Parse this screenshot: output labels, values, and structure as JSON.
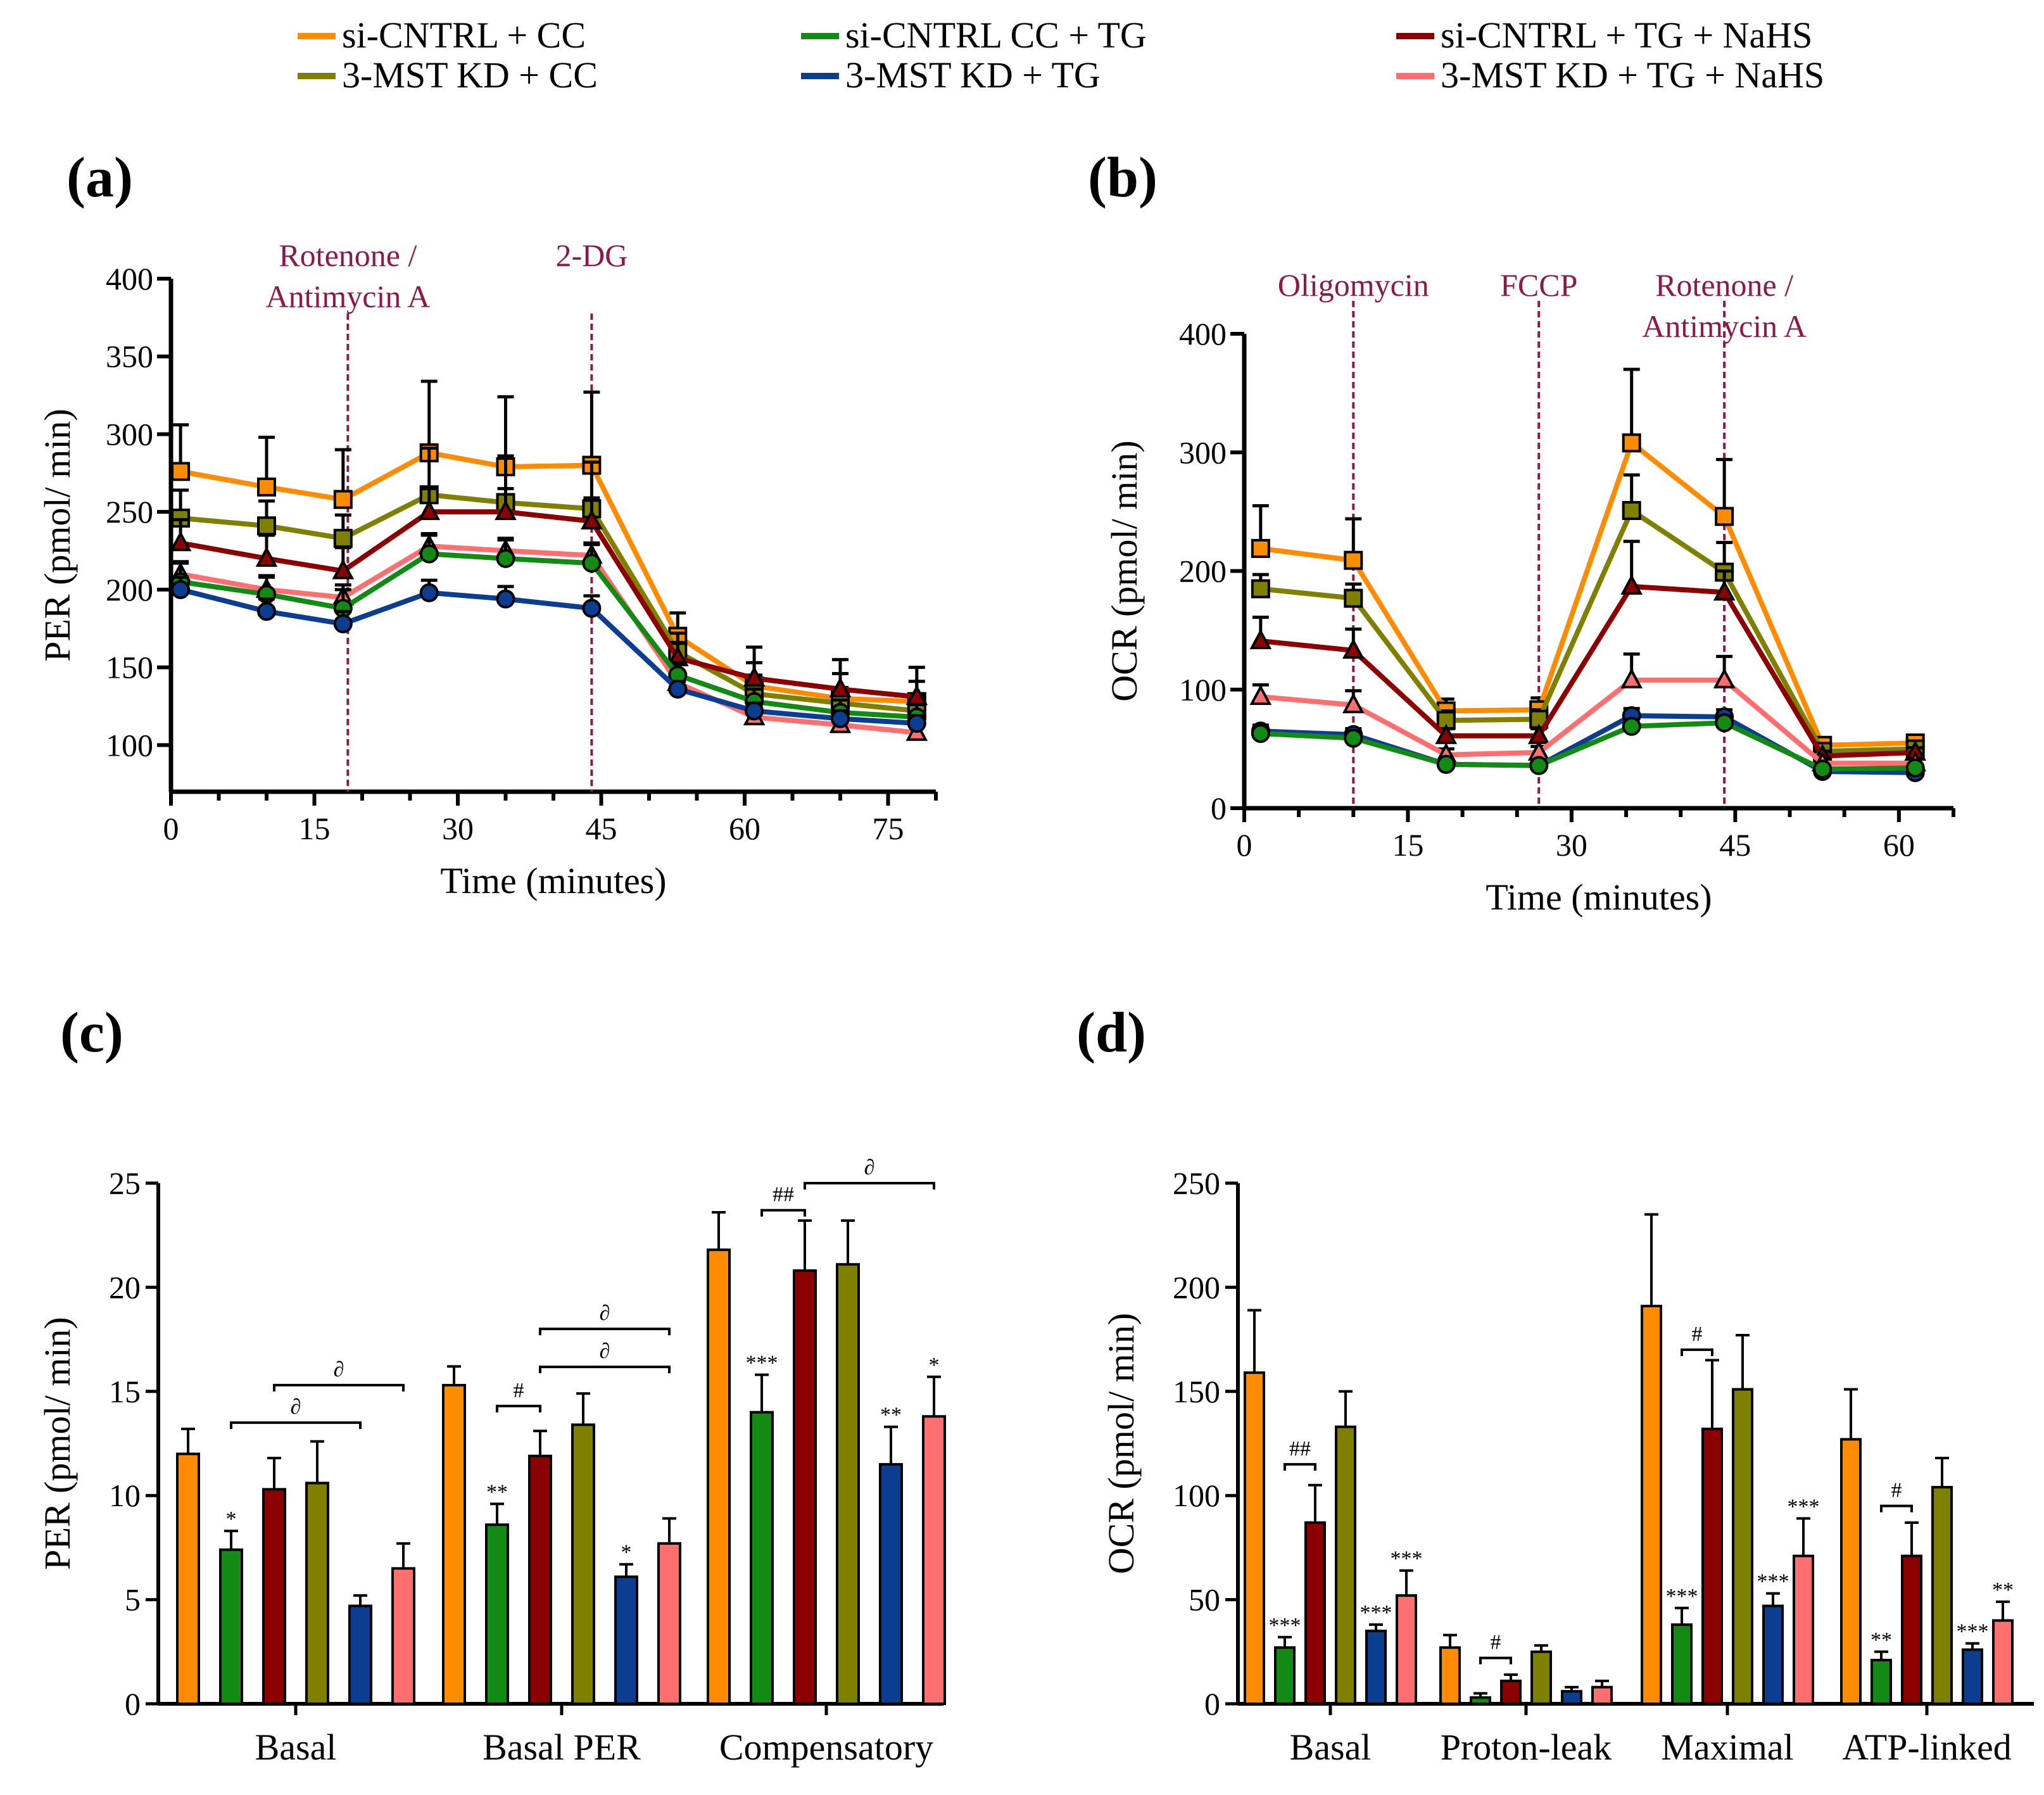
{
  "legend": [
    {
      "label": "si-CNTRL + CC",
      "color": "#ff8c00"
    },
    {
      "label": "3-MST KD + CC",
      "color": "#7f7f00"
    },
    {
      "label": "si-CNTRL CC + TG",
      "color": "#138a13"
    },
    {
      "label": "3-MST KD + TG",
      "color": "#0b3d91"
    },
    {
      "label": "si-CNTRL  + TG + NaHS",
      "color": "#8b0000"
    },
    {
      "label": "3-MST KD + TG + NaHS",
      "color": "#ff6f6f"
    }
  ],
  "chart_data": [
    {
      "id": "a",
      "panel_label": "(a)",
      "type": "line",
      "xlabel": "Time (minutes)",
      "ylabel": "PER (pmol/ min)",
      "xlim": [
        0,
        80
      ],
      "ylim": [
        70,
        400
      ],
      "xticks": [
        0,
        15,
        30,
        45,
        60,
        75
      ],
      "yticks": [
        100,
        150,
        200,
        250,
        300,
        350,
        400
      ],
      "x": [
        1,
        10,
        18,
        27,
        35,
        44,
        53,
        61,
        70,
        78
      ],
      "annotations": [
        {
          "x": 18.5,
          "lines": [
            "Rotenone /",
            "Antimycin A"
          ]
        },
        {
          "x": 44,
          "lines": [
            "2-DG"
          ]
        }
      ],
      "series": [
        {
          "name": "si-CNTRL + CC",
          "color": "#ff8c00",
          "marker": "square",
          "values": [
            276,
            266,
            258,
            288,
            279,
            280,
            170,
            138,
            130,
            128
          ],
          "errors": [
            30,
            32,
            32,
            46,
            45,
            47,
            15,
            25,
            25,
            22
          ]
        },
        {
          "name": "3-MST KD + CC",
          "color": "#7f7f00",
          "marker": "square",
          "values": [
            246,
            241,
            233,
            261,
            256,
            252,
            160,
            133,
            127,
            122
          ],
          "errors": [
            18,
            16,
            15,
            30,
            30,
            30,
            12,
            12,
            10,
            10
          ]
        },
        {
          "name": "si-CNTRL  + TG + NaHS",
          "color": "#8b0000",
          "marker": "triangle",
          "values": [
            230,
            220,
            212,
            250,
            250,
            244,
            156,
            143,
            136,
            131
          ],
          "errors": [
            15,
            15,
            15,
            15,
            15,
            15,
            10,
            10,
            10,
            10
          ]
        },
        {
          "name": "3-MST KD + TG + NaHS",
          "color": "#ff6f6f",
          "marker": "triangle",
          "values": [
            210,
            200,
            195,
            228,
            225,
            222,
            140,
            118,
            113,
            108
          ],
          "errors": [
            8,
            8,
            8,
            8,
            8,
            8,
            5,
            5,
            5,
            5
          ]
        },
        {
          "name": "si-CNTRL CC + TG",
          "color": "#138a13",
          "marker": "circle",
          "values": [
            205,
            197,
            188,
            223,
            220,
            217,
            145,
            128,
            121,
            118
          ],
          "errors": [
            12,
            12,
            12,
            12,
            12,
            12,
            8,
            8,
            8,
            8
          ]
        },
        {
          "name": "3-MST KD + TG",
          "color": "#0b3d91",
          "marker": "circle",
          "values": [
            200,
            186,
            178,
            198,
            194,
            188,
            136,
            122,
            117,
            114
          ],
          "errors": [
            8,
            8,
            8,
            8,
            8,
            8,
            5,
            5,
            5,
            5
          ]
        }
      ]
    },
    {
      "id": "b",
      "panel_label": "(b)",
      "type": "line",
      "xlabel": "Time (minutes)",
      "ylabel": "OCR (pmol/ min)",
      "xlim": [
        0,
        65
      ],
      "ylim": [
        0,
        400
      ],
      "xticks": [
        0,
        15,
        30,
        45,
        60
      ],
      "yticks": [
        0,
        100,
        200,
        300,
        400
      ],
      "x": [
        1.5,
        10,
        18.5,
        27,
        35.5,
        44,
        53,
        61.5
      ],
      "annotations": [
        {
          "x": 10,
          "lines": [
            "Oligomycin"
          ]
        },
        {
          "x": 27,
          "lines": [
            "FCCP"
          ]
        },
        {
          "x": 44,
          "lines": [
            "Rotenone /",
            "Antimycin A"
          ]
        }
      ],
      "series": [
        {
          "name": "si-CNTRL + CC",
          "color": "#ff8c00",
          "marker": "square",
          "values": [
            219,
            209,
            82,
            83,
            308,
            246,
            53,
            55
          ],
          "errors": [
            36,
            35,
            10,
            10,
            62,
            48,
            5,
            5
          ]
        },
        {
          "name": "3-MST KD + CC",
          "color": "#7f7f00",
          "marker": "square",
          "values": [
            185,
            177,
            74,
            75,
            251,
            199,
            48,
            50
          ],
          "errors": [
            12,
            12,
            8,
            8,
            30,
            25,
            5,
            5
          ]
        },
        {
          "name": "si-CNTRL  + TG + NaHS",
          "color": "#8b0000",
          "marker": "triangle",
          "values": [
            141,
            133,
            61,
            61,
            187,
            182,
            44,
            47
          ],
          "errors": [
            20,
            18,
            6,
            6,
            38,
            18,
            4,
            4
          ]
        },
        {
          "name": "3-MST KD + TG + NaHS",
          "color": "#ff6f6f",
          "marker": "triangle",
          "values": [
            94,
            87,
            45,
            47,
            108,
            108,
            38,
            38
          ],
          "errors": [
            10,
            12,
            5,
            5,
            22,
            20,
            4,
            4
          ]
        },
        {
          "name": "3-MST KD + TG",
          "color": "#0b3d91",
          "marker": "circle",
          "values": [
            65,
            62,
            37,
            36,
            78,
            77,
            31,
            30
          ],
          "errors": [
            5,
            5,
            3,
            3,
            6,
            6,
            3,
            3
          ]
        },
        {
          "name": "si-CNTRL CC + TG",
          "color": "#138a13",
          "marker": "circle",
          "values": [
            63,
            59,
            37,
            36,
            69,
            72,
            33,
            34
          ],
          "errors": [
            5,
            5,
            3,
            3,
            6,
            6,
            3,
            3
          ]
        }
      ]
    },
    {
      "id": "c",
      "panel_label": "(c)",
      "type": "bar",
      "ylabel": "PER (pmol/ min)",
      "ylim": [
        0,
        25
      ],
      "yticks": [
        0,
        5,
        10,
        15,
        20,
        25
      ],
      "categories": [
        "Basal",
        "Basal PER",
        "Compensatory"
      ],
      "series": [
        {
          "name": "si-CNTRL + CC",
          "color": "#ff8c00",
          "values": [
            12.0,
            15.3,
            21.8
          ],
          "errors": [
            1.2,
            0.9,
            1.8
          ],
          "labels": [
            "",
            "",
            ""
          ]
        },
        {
          "name": "si-CNTRL CC + TG",
          "color": "#138a13",
          "values": [
            7.4,
            8.6,
            14.0
          ],
          "errors": [
            0.9,
            1.0,
            1.8
          ],
          "labels": [
            "*",
            "**",
            "***"
          ]
        },
        {
          "name": "si-CNTRL  + TG + NaHS",
          "color": "#8b0000",
          "values": [
            10.3,
            11.9,
            20.8
          ],
          "errors": [
            1.5,
            1.2,
            2.4
          ],
          "labels": [
            "",
            "",
            ""
          ]
        },
        {
          "name": "3-MST KD + CC",
          "color": "#7f7f00",
          "values": [
            10.6,
            13.4,
            21.1
          ],
          "errors": [
            2.0,
            1.5,
            2.1
          ],
          "labels": [
            "",
            "",
            ""
          ]
        },
        {
          "name": "3-MST KD + TG",
          "color": "#0b3d91",
          "values": [
            4.7,
            6.1,
            11.5
          ],
          "errors": [
            0.5,
            0.6,
            1.8
          ],
          "labels": [
            "",
            "*",
            "**"
          ]
        },
        {
          "name": "3-MST KD + TG + NaHS",
          "color": "#ff6f6f",
          "values": [
            6.5,
            7.7,
            13.8
          ],
          "errors": [
            1.2,
            1.2,
            1.9
          ],
          "labels": [
            "",
            "",
            "*"
          ]
        }
      ],
      "brackets": [
        {
          "category": 0,
          "from": 1,
          "to": 4,
          "y": 13.5,
          "text": "∂"
        },
        {
          "category": 0,
          "from": 2,
          "to": 5,
          "y": 15.3,
          "text": "∂"
        },
        {
          "category": 1,
          "from": 1,
          "to": 2,
          "y": 14.3,
          "text": "#"
        },
        {
          "category": 1,
          "from": 2,
          "to": 5,
          "y": 18.0,
          "text": "∂"
        },
        {
          "category": 1,
          "from": 2,
          "to": 5,
          "y": 18.0,
          "text": "∂"
        },
        {
          "category": 2,
          "from": 1,
          "to": 2,
          "y": 23.7,
          "text": "##"
        },
        {
          "category": 2,
          "from": 2,
          "to": 5,
          "y": 25.0,
          "text": "∂"
        }
      ]
    },
    {
      "id": "d",
      "panel_label": "(d)",
      "type": "bar",
      "ylabel": "OCR (pmol/ min)",
      "ylim": [
        0,
        250
      ],
      "yticks": [
        0,
        50,
        100,
        150,
        200,
        250
      ],
      "categories": [
        "Basal",
        "Proton-leak",
        "Maximal",
        "ATP-linked"
      ],
      "series": [
        {
          "name": "si-CNTRL + CC",
          "color": "#ff8c00",
          "values": [
            159,
            27,
            191,
            127
          ],
          "errors": [
            30,
            6,
            44,
            24
          ],
          "labels": [
            "",
            "",
            "",
            ""
          ]
        },
        {
          "name": "si-CNTRL CC + TG",
          "color": "#138a13",
          "values": [
            27,
            3,
            38,
            21
          ],
          "errors": [
            5,
            2,
            8,
            4
          ],
          "labels": [
            "***",
            "",
            "***",
            "**"
          ]
        },
        {
          "name": "si-CNTRL  + TG + NaHS",
          "color": "#8b0000",
          "values": [
            87,
            11,
            132,
            71
          ],
          "errors": [
            18,
            3,
            33,
            16
          ],
          "labels": [
            "",
            "",
            "",
            ""
          ]
        },
        {
          "name": "3-MST KD + CC",
          "color": "#7f7f00",
          "values": [
            133,
            25,
            151,
            104
          ],
          "errors": [
            17,
            3,
            26,
            14
          ],
          "labels": [
            "",
            "",
            "",
            ""
          ]
        },
        {
          "name": "3-MST KD + TG",
          "color": "#0b3d91",
          "values": [
            35,
            6,
            47,
            26
          ],
          "errors": [
            3,
            2,
            6,
            3
          ],
          "labels": [
            "***",
            "",
            "***",
            "***"
          ]
        },
        {
          "name": "3-MST KD + TG + NaHS",
          "color": "#ff6f6f",
          "values": [
            52,
            8,
            71,
            40
          ],
          "errors": [
            12,
            3,
            18,
            9
          ],
          "labels": [
            "***",
            "",
            "***",
            "**"
          ]
        }
      ],
      "brackets": [
        {
          "category": 0,
          "from": 1,
          "to": 2,
          "y": 115,
          "text": "##"
        },
        {
          "category": 1,
          "from": 1,
          "to": 2,
          "y": 22,
          "text": "#"
        },
        {
          "category": 2,
          "from": 1,
          "to": 2,
          "y": 170,
          "text": "#"
        },
        {
          "category": 3,
          "from": 1,
          "to": 2,
          "y": 95,
          "text": "#"
        }
      ]
    }
  ]
}
